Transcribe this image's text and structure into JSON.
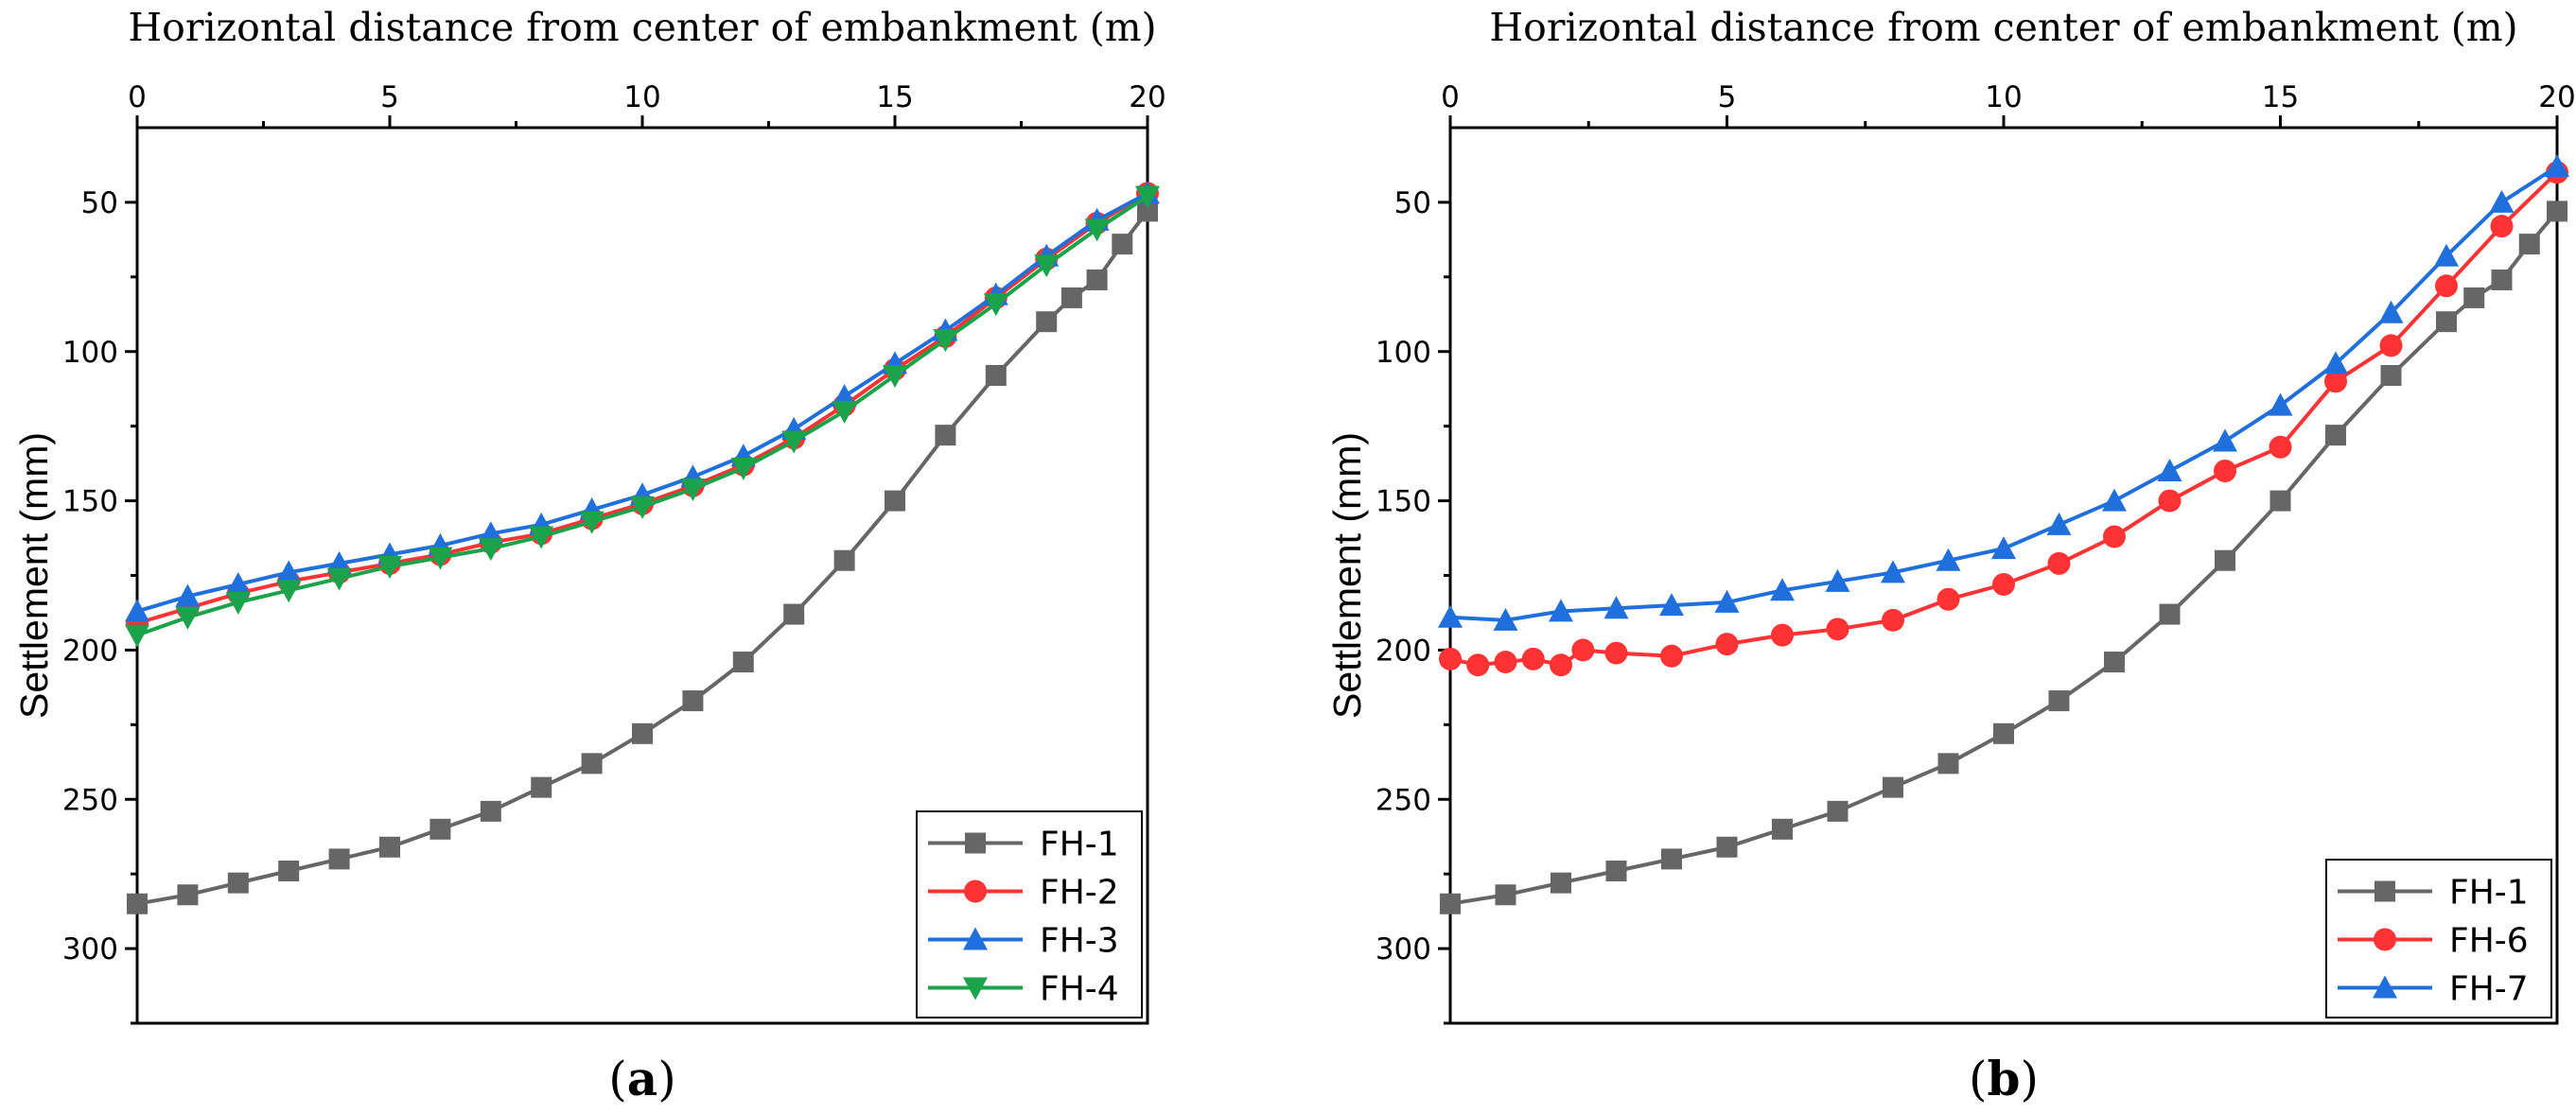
{
  "chart_data": [
    {
      "type": "line",
      "panel_label": "a",
      "xlabel": "Horizontal distance from center of embankment (m)",
      "ylabel": "Settlement (mm)",
      "xlim": [
        0,
        20
      ],
      "ylim": [
        325,
        25
      ],
      "y_inverted": true,
      "x_axis_position": "top",
      "xticks": [
        0,
        5,
        10,
        15,
        20
      ],
      "yticks": [
        50,
        100,
        150,
        200,
        250,
        300
      ],
      "grid": false,
      "legend_position": "bottom-right",
      "series": [
        {
          "name": "FH-1",
          "color": "#666666",
          "marker": "square",
          "x": [
            0,
            1,
            2,
            3,
            4,
            5,
            6,
            7,
            8,
            9,
            10,
            11,
            12,
            13,
            14,
            15,
            16,
            17,
            18,
            18.5,
            19,
            19.5,
            20
          ],
          "y": [
            285,
            282,
            278,
            274,
            270,
            266,
            260,
            254,
            246,
            238,
            228,
            217,
            204,
            188,
            170,
            150,
            128,
            108,
            90,
            82,
            76,
            64,
            53
          ]
        },
        {
          "name": "FH-2",
          "color": "#ff3333",
          "marker": "circle",
          "x": [
            0,
            1,
            2,
            3,
            4,
            5,
            6,
            7,
            8,
            9,
            10,
            11,
            12,
            13,
            14,
            15,
            16,
            17,
            18,
            19,
            20
          ],
          "y": [
            191,
            186,
            181,
            177,
            174,
            171,
            168,
            164,
            161,
            156,
            151,
            145,
            138,
            129,
            118,
            106,
            95,
            82,
            69,
            57,
            47
          ]
        },
        {
          "name": "FH-3",
          "color": "#1f6fdd",
          "marker": "triangle-up",
          "x": [
            0,
            1,
            2,
            3,
            4,
            5,
            6,
            7,
            8,
            9,
            10,
            11,
            12,
            13,
            14,
            15,
            16,
            17,
            18,
            19,
            20
          ],
          "y": [
            187,
            182,
            178,
            174,
            171,
            168,
            165,
            161,
            158,
            153,
            148,
            142,
            135,
            126,
            115,
            104,
            93,
            81,
            68,
            56,
            47
          ]
        },
        {
          "name": "FH-4",
          "color": "#1aa34a",
          "marker": "triangle-down",
          "x": [
            0,
            1,
            2,
            3,
            4,
            5,
            6,
            7,
            8,
            9,
            10,
            11,
            12,
            13,
            14,
            15,
            16,
            17,
            18,
            19,
            20
          ],
          "y": [
            195,
            189,
            184,
            180,
            176,
            172,
            169,
            166,
            162,
            157,
            152,
            146,
            139,
            130,
            120,
            108,
            96,
            84,
            71,
            59,
            48
          ]
        }
      ]
    },
    {
      "type": "line",
      "panel_label": "b",
      "xlabel": "Horizontal distance from center of embankment (m)",
      "ylabel": "Settlement (mm)",
      "xlim": [
        0,
        20
      ],
      "ylim": [
        325,
        25
      ],
      "y_inverted": true,
      "x_axis_position": "top",
      "xticks": [
        0,
        5,
        10,
        15,
        20
      ],
      "yticks": [
        50,
        100,
        150,
        200,
        250,
        300
      ],
      "grid": false,
      "legend_position": "bottom-right",
      "series": [
        {
          "name": "FH-1",
          "color": "#666666",
          "marker": "square",
          "x": [
            0,
            1,
            2,
            3,
            4,
            5,
            6,
            7,
            8,
            9,
            10,
            11,
            12,
            13,
            14,
            15,
            16,
            17,
            18,
            18.5,
            19,
            19.5,
            20
          ],
          "y": [
            285,
            282,
            278,
            274,
            270,
            266,
            260,
            254,
            246,
            238,
            228,
            217,
            204,
            188,
            170,
            150,
            128,
            108,
            90,
            82,
            76,
            64,
            53
          ]
        },
        {
          "name": "FH-6",
          "color": "#ff3333",
          "marker": "circle",
          "x": [
            0,
            0.5,
            1,
            1.5,
            2,
            2.4,
            3,
            4,
            5,
            6,
            7,
            8,
            9,
            10,
            11,
            12,
            13,
            14,
            15,
            16,
            17,
            18,
            19,
            20
          ],
          "y": [
            203,
            205,
            204,
            203,
            205,
            200,
            201,
            202,
            198,
            195,
            193,
            190,
            183,
            178,
            171,
            162,
            150,
            140,
            132,
            110,
            98,
            78,
            58,
            40
          ]
        },
        {
          "name": "FH-7",
          "color": "#1f6fdd",
          "marker": "triangle-up",
          "x": [
            0,
            1,
            2,
            3,
            4,
            5,
            6,
            7,
            8,
            9,
            10,
            11,
            12,
            13,
            14,
            15,
            16,
            17,
            18,
            19,
            20
          ],
          "y": [
            189,
            190,
            187,
            186,
            185,
            184,
            180,
            177,
            174,
            170,
            166,
            158,
            150,
            140,
            130,
            118,
            104,
            87,
            68,
            50,
            38
          ]
        }
      ]
    }
  ]
}
